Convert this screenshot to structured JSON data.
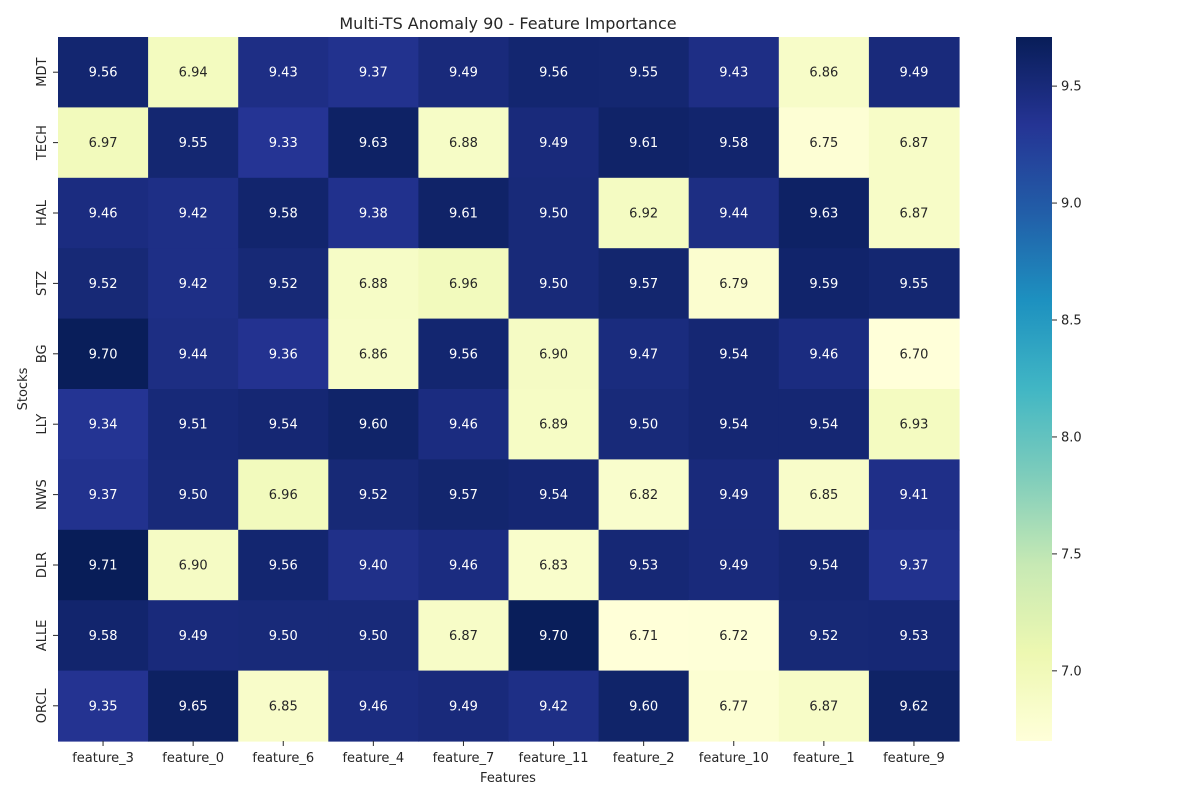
{
  "chart_data": {
    "type": "heatmap",
    "title": "Multi-TS Anomaly 90 - Feature Importance",
    "xlabel": "Features",
    "ylabel": "Stocks",
    "x_categories": [
      "feature_3",
      "feature_0",
      "feature_6",
      "feature_4",
      "feature_7",
      "feature_11",
      "feature_2",
      "feature_10",
      "feature_1",
      "feature_9"
    ],
    "y_categories": [
      "MDT",
      "TECH",
      "HAL",
      "STZ",
      "BG",
      "LLY",
      "NWS",
      "DLR",
      "ALLE",
      "ORCL"
    ],
    "values": [
      [
        9.56,
        6.94,
        9.43,
        9.37,
        9.49,
        9.56,
        9.55,
        9.43,
        6.86,
        9.49
      ],
      [
        6.97,
        9.55,
        9.33,
        9.63,
        6.88,
        9.49,
        9.61,
        9.58,
        6.75,
        6.87
      ],
      [
        9.46,
        9.42,
        9.58,
        9.38,
        9.61,
        9.5,
        6.92,
        9.44,
        9.63,
        6.87
      ],
      [
        9.52,
        9.42,
        9.52,
        6.88,
        6.96,
        9.5,
        9.57,
        6.79,
        9.59,
        9.55
      ],
      [
        9.7,
        9.44,
        9.36,
        6.86,
        9.56,
        6.9,
        9.47,
        9.54,
        9.46,
        6.7
      ],
      [
        9.34,
        9.51,
        9.54,
        9.6,
        9.46,
        6.89,
        9.5,
        9.54,
        9.54,
        6.93
      ],
      [
        9.37,
        9.5,
        6.96,
        9.52,
        9.57,
        9.54,
        6.82,
        9.49,
        6.85,
        9.41
      ],
      [
        9.71,
        6.9,
        9.56,
        9.4,
        9.46,
        6.83,
        9.53,
        9.49,
        9.54,
        9.37
      ],
      [
        9.58,
        9.49,
        9.5,
        9.5,
        6.87,
        9.7,
        6.71,
        6.72,
        9.52,
        9.53
      ],
      [
        9.35,
        9.65,
        6.85,
        9.46,
        9.49,
        9.42,
        9.6,
        6.77,
        6.87,
        9.62
      ]
    ],
    "value_format": "0.00",
    "colormap": "YlGnBu",
    "vmin": 6.7,
    "vmax": 9.71,
    "colorbar_ticks": [
      7.0,
      7.5,
      8.0,
      8.5,
      9.0,
      9.5
    ],
    "colorbar_tick_labels": [
      "7.0",
      "7.5",
      "8.0",
      "8.5",
      "9.0",
      "9.5"
    ]
  }
}
